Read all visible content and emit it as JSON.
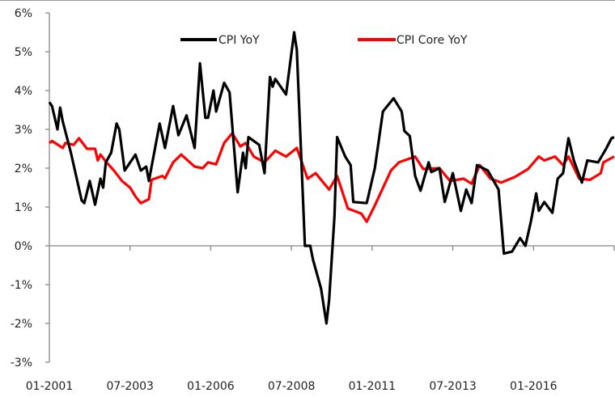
{
  "chart_data": {
    "type": "line",
    "title": "",
    "xlabel": "",
    "ylabel": "",
    "ylim": [
      -3,
      6
    ],
    "y_ticks": [
      "6%",
      "5%",
      "4%",
      "3%",
      "2%",
      "1%",
      "0%",
      "-1%",
      "-2%",
      "-3%"
    ],
    "y_tick_values": [
      6,
      5,
      4,
      3,
      2,
      1,
      0,
      -1,
      -2,
      -3
    ],
    "x_range": [
      "2001-01",
      "2018-07"
    ],
    "x_ticks": [
      "01-2001",
      "07-2003",
      "01-2006",
      "07-2008",
      "01-2011",
      "07-2013",
      "01-2016"
    ],
    "grid": false,
    "legend_placement": "top",
    "series": [
      {
        "name": "CPI YoY",
        "color": "#000000",
        "points": [
          [
            "2001-01",
            3.7
          ],
          [
            "2001-02",
            3.6
          ],
          [
            "2001-04",
            3.0
          ],
          [
            "2001-05",
            3.56
          ],
          [
            "2001-06",
            3.2
          ],
          [
            "2001-09",
            2.4
          ],
          [
            "2002-01",
            1.17
          ],
          [
            "2002-02",
            1.1
          ],
          [
            "2002-04",
            1.67
          ],
          [
            "2002-06",
            1.06
          ],
          [
            "2002-08",
            1.73
          ],
          [
            "2002-09",
            1.5
          ],
          [
            "2002-10",
            2.15
          ],
          [
            "2002-12",
            2.4
          ],
          [
            "2003-02",
            3.15
          ],
          [
            "2003-03",
            3.0
          ],
          [
            "2003-05",
            1.94
          ],
          [
            "2003-09",
            2.35
          ],
          [
            "2003-11",
            1.94
          ],
          [
            "2004-01",
            2.04
          ],
          [
            "2004-02",
            1.67
          ],
          [
            "2004-06",
            3.15
          ],
          [
            "2004-08",
            2.52
          ],
          [
            "2004-11",
            3.6
          ],
          [
            "2005-01",
            2.85
          ],
          [
            "2005-04",
            3.36
          ],
          [
            "2005-07",
            2.52
          ],
          [
            "2005-09",
            4.7
          ],
          [
            "2005-11",
            3.3
          ],
          [
            "2005-12",
            3.3
          ],
          [
            "2006-02",
            4.0
          ],
          [
            "2006-03",
            3.46
          ],
          [
            "2006-06",
            4.2
          ],
          [
            "2006-08",
            3.95
          ],
          [
            "2006-11",
            1.38
          ],
          [
            "2007-01",
            2.4
          ],
          [
            "2007-02",
            2.0
          ],
          [
            "2007-03",
            2.8
          ],
          [
            "2007-07",
            2.6
          ],
          [
            "2007-09",
            1.87
          ],
          [
            "2007-11",
            4.35
          ],
          [
            "2007-12",
            4.1
          ],
          [
            "2008-01",
            4.3
          ],
          [
            "2008-05",
            3.9
          ],
          [
            "2008-08",
            5.5
          ],
          [
            "2008-09",
            5.05
          ],
          [
            "2008-12",
            0.0
          ],
          [
            "2009-02",
            0.0
          ],
          [
            "2009-03",
            -0.35
          ],
          [
            "2009-06",
            -1.1
          ],
          [
            "2009-08",
            -2.0
          ],
          [
            "2009-09",
            -1.4
          ],
          [
            "2009-11",
            0.75
          ],
          [
            "2009-12",
            2.8
          ],
          [
            "2010-03",
            2.3
          ],
          [
            "2010-05",
            2.08
          ],
          [
            "2010-06",
            1.13
          ],
          [
            "2010-11",
            1.1
          ],
          [
            "2011-02",
            2.0
          ],
          [
            "2011-05",
            3.46
          ],
          [
            "2011-09",
            3.8
          ],
          [
            "2011-12",
            3.46
          ],
          [
            "2012-01",
            2.96
          ],
          [
            "2012-03",
            2.83
          ],
          [
            "2012-05",
            1.8
          ],
          [
            "2012-07",
            1.42
          ],
          [
            "2012-10",
            2.15
          ],
          [
            "2012-11",
            1.9
          ],
          [
            "2013-02",
            2.0
          ],
          [
            "2013-04",
            1.13
          ],
          [
            "2013-07",
            1.87
          ],
          [
            "2013-10",
            0.9
          ],
          [
            "2013-12",
            1.45
          ],
          [
            "2014-02",
            1.1
          ],
          [
            "2014-04",
            2.08
          ],
          [
            "2014-08",
            1.94
          ],
          [
            "2014-12",
            1.45
          ],
          [
            "2015-02",
            -0.2
          ],
          [
            "2015-05",
            -0.15
          ],
          [
            "2015-08",
            0.2
          ],
          [
            "2015-10",
            0.0
          ],
          [
            "2015-12",
            0.62
          ],
          [
            "2016-02",
            1.35
          ],
          [
            "2016-03",
            0.9
          ],
          [
            "2016-05",
            1.13
          ],
          [
            "2016-08",
            0.85
          ],
          [
            "2016-10",
            1.73
          ],
          [
            "2016-12",
            1.87
          ],
          [
            "2017-02",
            2.77
          ],
          [
            "2017-04",
            2.2
          ],
          [
            "2017-07",
            1.63
          ],
          [
            "2017-09",
            2.2
          ],
          [
            "2018-01",
            2.15
          ],
          [
            "2018-04",
            2.5
          ],
          [
            "2018-06",
            2.77
          ],
          [
            "2018-07",
            2.8
          ]
        ]
      },
      {
        "name": "CPI Core YoY",
        "color": "#ff0000",
        "points": [
          [
            "2001-01",
            2.65
          ],
          [
            "2001-02",
            2.7
          ],
          [
            "2001-06",
            2.52
          ],
          [
            "2001-07",
            2.65
          ],
          [
            "2001-10",
            2.6
          ],
          [
            "2001-12",
            2.77
          ],
          [
            "2002-03",
            2.5
          ],
          [
            "2002-06",
            2.5
          ],
          [
            "2002-07",
            2.2
          ],
          [
            "2002-08",
            2.35
          ],
          [
            "2002-10",
            2.17
          ],
          [
            "2003-01",
            1.94
          ],
          [
            "2003-04",
            1.67
          ],
          [
            "2003-07",
            1.5
          ],
          [
            "2003-09",
            1.27
          ],
          [
            "2003-11",
            1.1
          ],
          [
            "2004-02",
            1.2
          ],
          [
            "2004-03",
            1.7
          ],
          [
            "2004-07",
            1.8
          ],
          [
            "2004-08",
            1.74
          ],
          [
            "2004-11",
            2.15
          ],
          [
            "2005-02",
            2.35
          ],
          [
            "2005-07",
            2.04
          ],
          [
            "2005-10",
            2.0
          ],
          [
            "2005-12",
            2.15
          ],
          [
            "2006-03",
            2.1
          ],
          [
            "2006-06",
            2.65
          ],
          [
            "2006-09",
            2.9
          ],
          [
            "2006-12",
            2.56
          ],
          [
            "2007-02",
            2.65
          ],
          [
            "2007-05",
            2.3
          ],
          [
            "2007-09",
            2.15
          ],
          [
            "2008-01",
            2.45
          ],
          [
            "2008-05",
            2.3
          ],
          [
            "2008-09",
            2.52
          ],
          [
            "2009-01",
            1.73
          ],
          [
            "2009-04",
            1.87
          ],
          [
            "2009-09",
            1.45
          ],
          [
            "2009-12",
            1.8
          ],
          [
            "2010-04",
            0.96
          ],
          [
            "2010-09",
            0.83
          ],
          [
            "2010-11",
            0.62
          ],
          [
            "2011-02",
            1.04
          ],
          [
            "2011-08",
            1.94
          ],
          [
            "2011-11",
            2.15
          ],
          [
            "2012-05",
            2.3
          ],
          [
            "2012-08",
            1.98
          ],
          [
            "2013-02",
            2.0
          ],
          [
            "2013-06",
            1.67
          ],
          [
            "2013-11",
            1.73
          ],
          [
            "2014-02",
            1.6
          ],
          [
            "2014-05",
            2.08
          ],
          [
            "2014-09",
            1.73
          ],
          [
            "2015-01",
            1.63
          ],
          [
            "2015-06",
            1.77
          ],
          [
            "2015-11",
            1.98
          ],
          [
            "2016-03",
            2.3
          ],
          [
            "2016-05",
            2.2
          ],
          [
            "2016-09",
            2.3
          ],
          [
            "2016-12",
            2.08
          ],
          [
            "2017-02",
            2.3
          ],
          [
            "2017-06",
            1.73
          ],
          [
            "2017-10",
            1.7
          ],
          [
            "2018-02",
            1.87
          ],
          [
            "2018-03",
            2.15
          ],
          [
            "2018-07",
            2.3
          ]
        ]
      }
    ]
  }
}
